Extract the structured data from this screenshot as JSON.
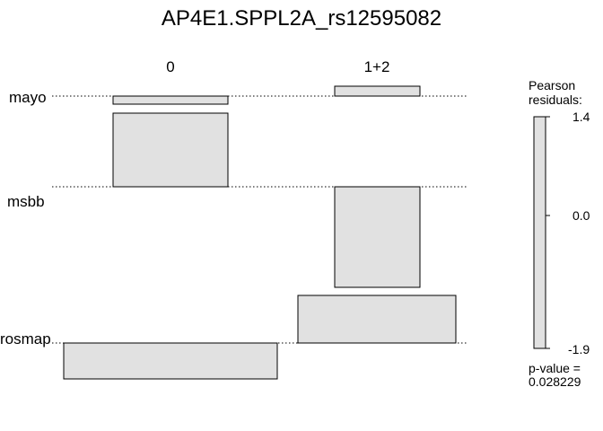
{
  "chart_data": {
    "type": "mosaic",
    "title": "AP4E1.SPPL2A_rs12595082",
    "columns": [
      "0",
      "1+2"
    ],
    "rows": [
      "mayo",
      "msbb",
      "rosmap"
    ],
    "column_shares": [
      0.52,
      0.48
    ],
    "row_shares": {
      "0": [
        0.05,
        0.45,
        0.5
      ],
      "1+2": [
        0.05,
        0.6,
        0.35
      ]
    },
    "pearson_residuals": {
      "0": [
        -0.4,
        1.4,
        -1.1
      ],
      "1+2": [
        0.5,
        -1.9,
        1.0
      ]
    },
    "cell_fill": "#e1e1e1",
    "legend": {
      "title_line1": "Pearson",
      "title_line2": "residuals:",
      "max_label": "1.4",
      "mid_label": "0.0",
      "min_label": "-1.9",
      "pvalue_label": "p-value =",
      "pvalue": "0.028229"
    }
  }
}
